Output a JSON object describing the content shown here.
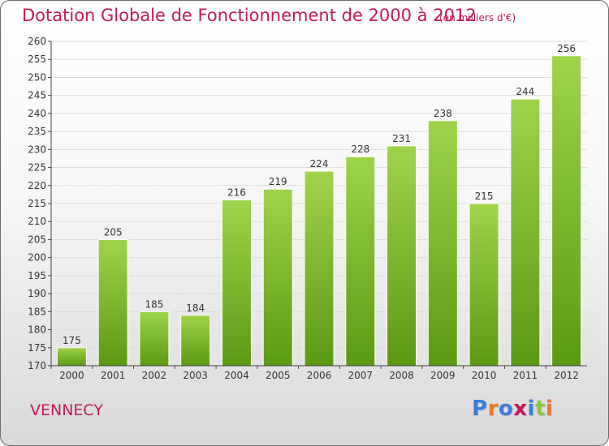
{
  "header": {
    "title": "Dotation Globale de Fonctionnement de 2000 à 2012",
    "unit": "(en milliers d'€)"
  },
  "footer": {
    "town": "VENNECY",
    "logo_text": "Proxiti"
  },
  "colors": {
    "title": "#c2185b",
    "bar_top": "#9ed44a",
    "bar_bottom": "#5a9a12",
    "grid": "#dddddd",
    "axis": "#444444",
    "logo": [
      "#3b7dd8",
      "#e9782d",
      "#3b7dd8",
      "#c2185b",
      "#3b7dd8",
      "#8cc63f",
      "#e9782d"
    ]
  },
  "chart_data": {
    "type": "bar",
    "title": "Dotation Globale de Fonctionnement de 2000 à 2012",
    "subtitle": "(en milliers d'€)",
    "categories": [
      "2000",
      "2001",
      "2002",
      "2003",
      "2004",
      "2005",
      "2006",
      "2007",
      "2008",
      "2009",
      "2010",
      "2011",
      "2012"
    ],
    "values": [
      175,
      205,
      185,
      184,
      216,
      219,
      224,
      228,
      231,
      238,
      215,
      244,
      256
    ],
    "ylim": [
      170,
      260
    ],
    "yticks": [
      170,
      175,
      180,
      185,
      190,
      195,
      200,
      205,
      210,
      215,
      220,
      225,
      230,
      235,
      240,
      245,
      250,
      255,
      260
    ],
    "grid": true,
    "data_labels": true
  }
}
